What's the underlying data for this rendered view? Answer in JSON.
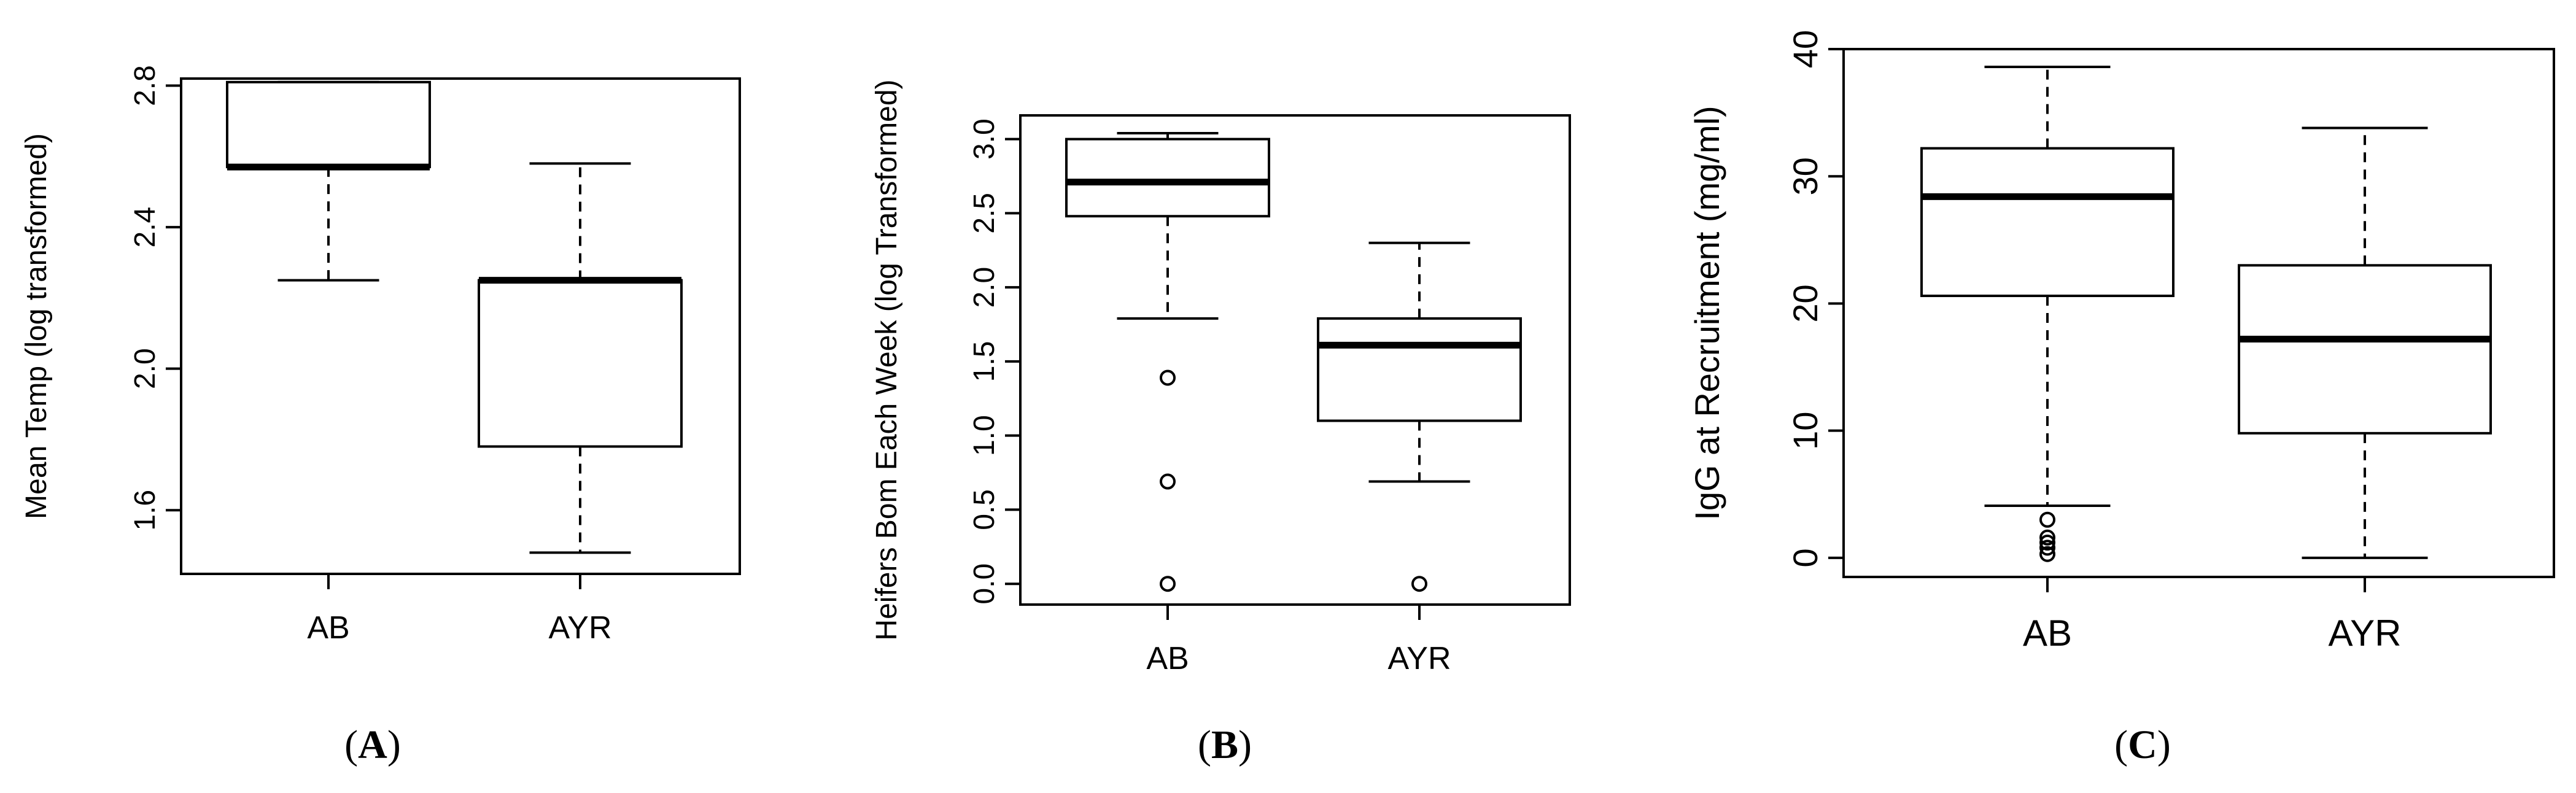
{
  "chart_data": [
    {
      "type": "box",
      "panel_label": "A",
      "xlabel": "",
      "ylabel": "Mean Temp (log transformed)",
      "categories": [
        "AB",
        "AYR"
      ],
      "ylim": [
        1.42,
        2.82
      ],
      "yticks": [
        1.6,
        2.0,
        2.4,
        2.8
      ],
      "ytick_labels": [
        "1.6",
        "2.0",
        "2.4",
        "2.8"
      ],
      "boxes": [
        {
          "category": "AB",
          "whisker_low": 2.25,
          "q1": 2.57,
          "median": 2.57,
          "q3": 2.81,
          "whisker_high": 2.81,
          "outliers": []
        },
        {
          "category": "AYR",
          "whisker_low": 1.48,
          "q1": 1.78,
          "median": 2.25,
          "q3": 2.25,
          "whisker_high": 2.58,
          "outliers": []
        }
      ]
    },
    {
      "type": "box",
      "panel_label": "B",
      "xlabel": "",
      "ylabel": "Heifers Bom Each Week (log Transformed)",
      "categories": [
        "AB",
        "AYR"
      ],
      "ylim": [
        -0.14,
        3.16
      ],
      "yticks": [
        0.0,
        0.5,
        1.0,
        1.5,
        2.0,
        2.5,
        3.0
      ],
      "ytick_labels": [
        "0.0",
        "0.5",
        "1.0",
        "1.5",
        "2.0",
        "2.5",
        "3.0"
      ],
      "boxes": [
        {
          "category": "AB",
          "whisker_low": 1.79,
          "q1": 2.48,
          "median": 2.71,
          "q3": 3.0,
          "whisker_high": 3.04,
          "outliers": [
            1.39,
            0.69,
            0.0
          ]
        },
        {
          "category": "AYR",
          "whisker_low": 0.69,
          "q1": 1.1,
          "median": 1.61,
          "q3": 1.79,
          "whisker_high": 2.3,
          "outliers": [
            0.0
          ]
        }
      ]
    },
    {
      "type": "box",
      "panel_label": "C",
      "xlabel": "",
      "ylabel": "IgG at Recruitment (mg/ml)",
      "categories": [
        "AB",
        "AYR"
      ],
      "ylim": [
        -1.5,
        40
      ],
      "yticks": [
        0,
        10,
        20,
        30,
        40
      ],
      "ytick_labels": [
        "0",
        "10",
        "20",
        "30",
        "40"
      ],
      "boxes": [
        {
          "category": "AB",
          "whisker_low": 4.1,
          "q1": 20.6,
          "median": 28.4,
          "q3": 32.2,
          "whisker_high": 38.6,
          "outliers": [
            3.0,
            1.6,
            1.2,
            0.8,
            0.3
          ]
        },
        {
          "category": "AYR",
          "whisker_low": 0.0,
          "q1": 9.8,
          "median": 17.2,
          "q3": 23.0,
          "whisker_high": 33.8,
          "outliers": []
        }
      ]
    }
  ]
}
